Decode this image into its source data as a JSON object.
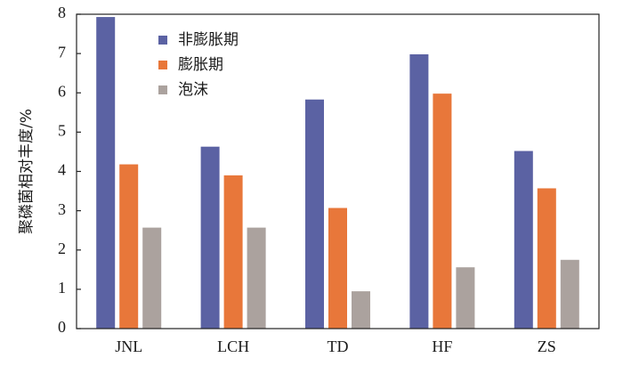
{
  "chart_data": {
    "type": "bar",
    "title": "",
    "xlabel": "",
    "ylabel": "聚磷菌相对丰度/%",
    "ylim": [
      0,
      8
    ],
    "yticks": [
      0,
      1,
      2,
      3,
      4,
      5,
      6,
      7,
      8
    ],
    "grid": false,
    "legend_position": "top-left",
    "categories": [
      "JNL",
      "LCH",
      "TD",
      "HF",
      "ZS"
    ],
    "series": [
      {
        "name": "非膨胀期",
        "color": "#5b62a3",
        "values": [
          7.93,
          4.63,
          5.83,
          6.98,
          4.52
        ]
      },
      {
        "name": "膨胀期",
        "color": "#e8773a",
        "values": [
          4.18,
          3.9,
          3.07,
          5.98,
          3.57
        ]
      },
      {
        "name": "泡沫",
        "color": "#aba29e",
        "values": [
          2.57,
          2.57,
          0.95,
          1.56,
          1.75
        ]
      }
    ]
  }
}
